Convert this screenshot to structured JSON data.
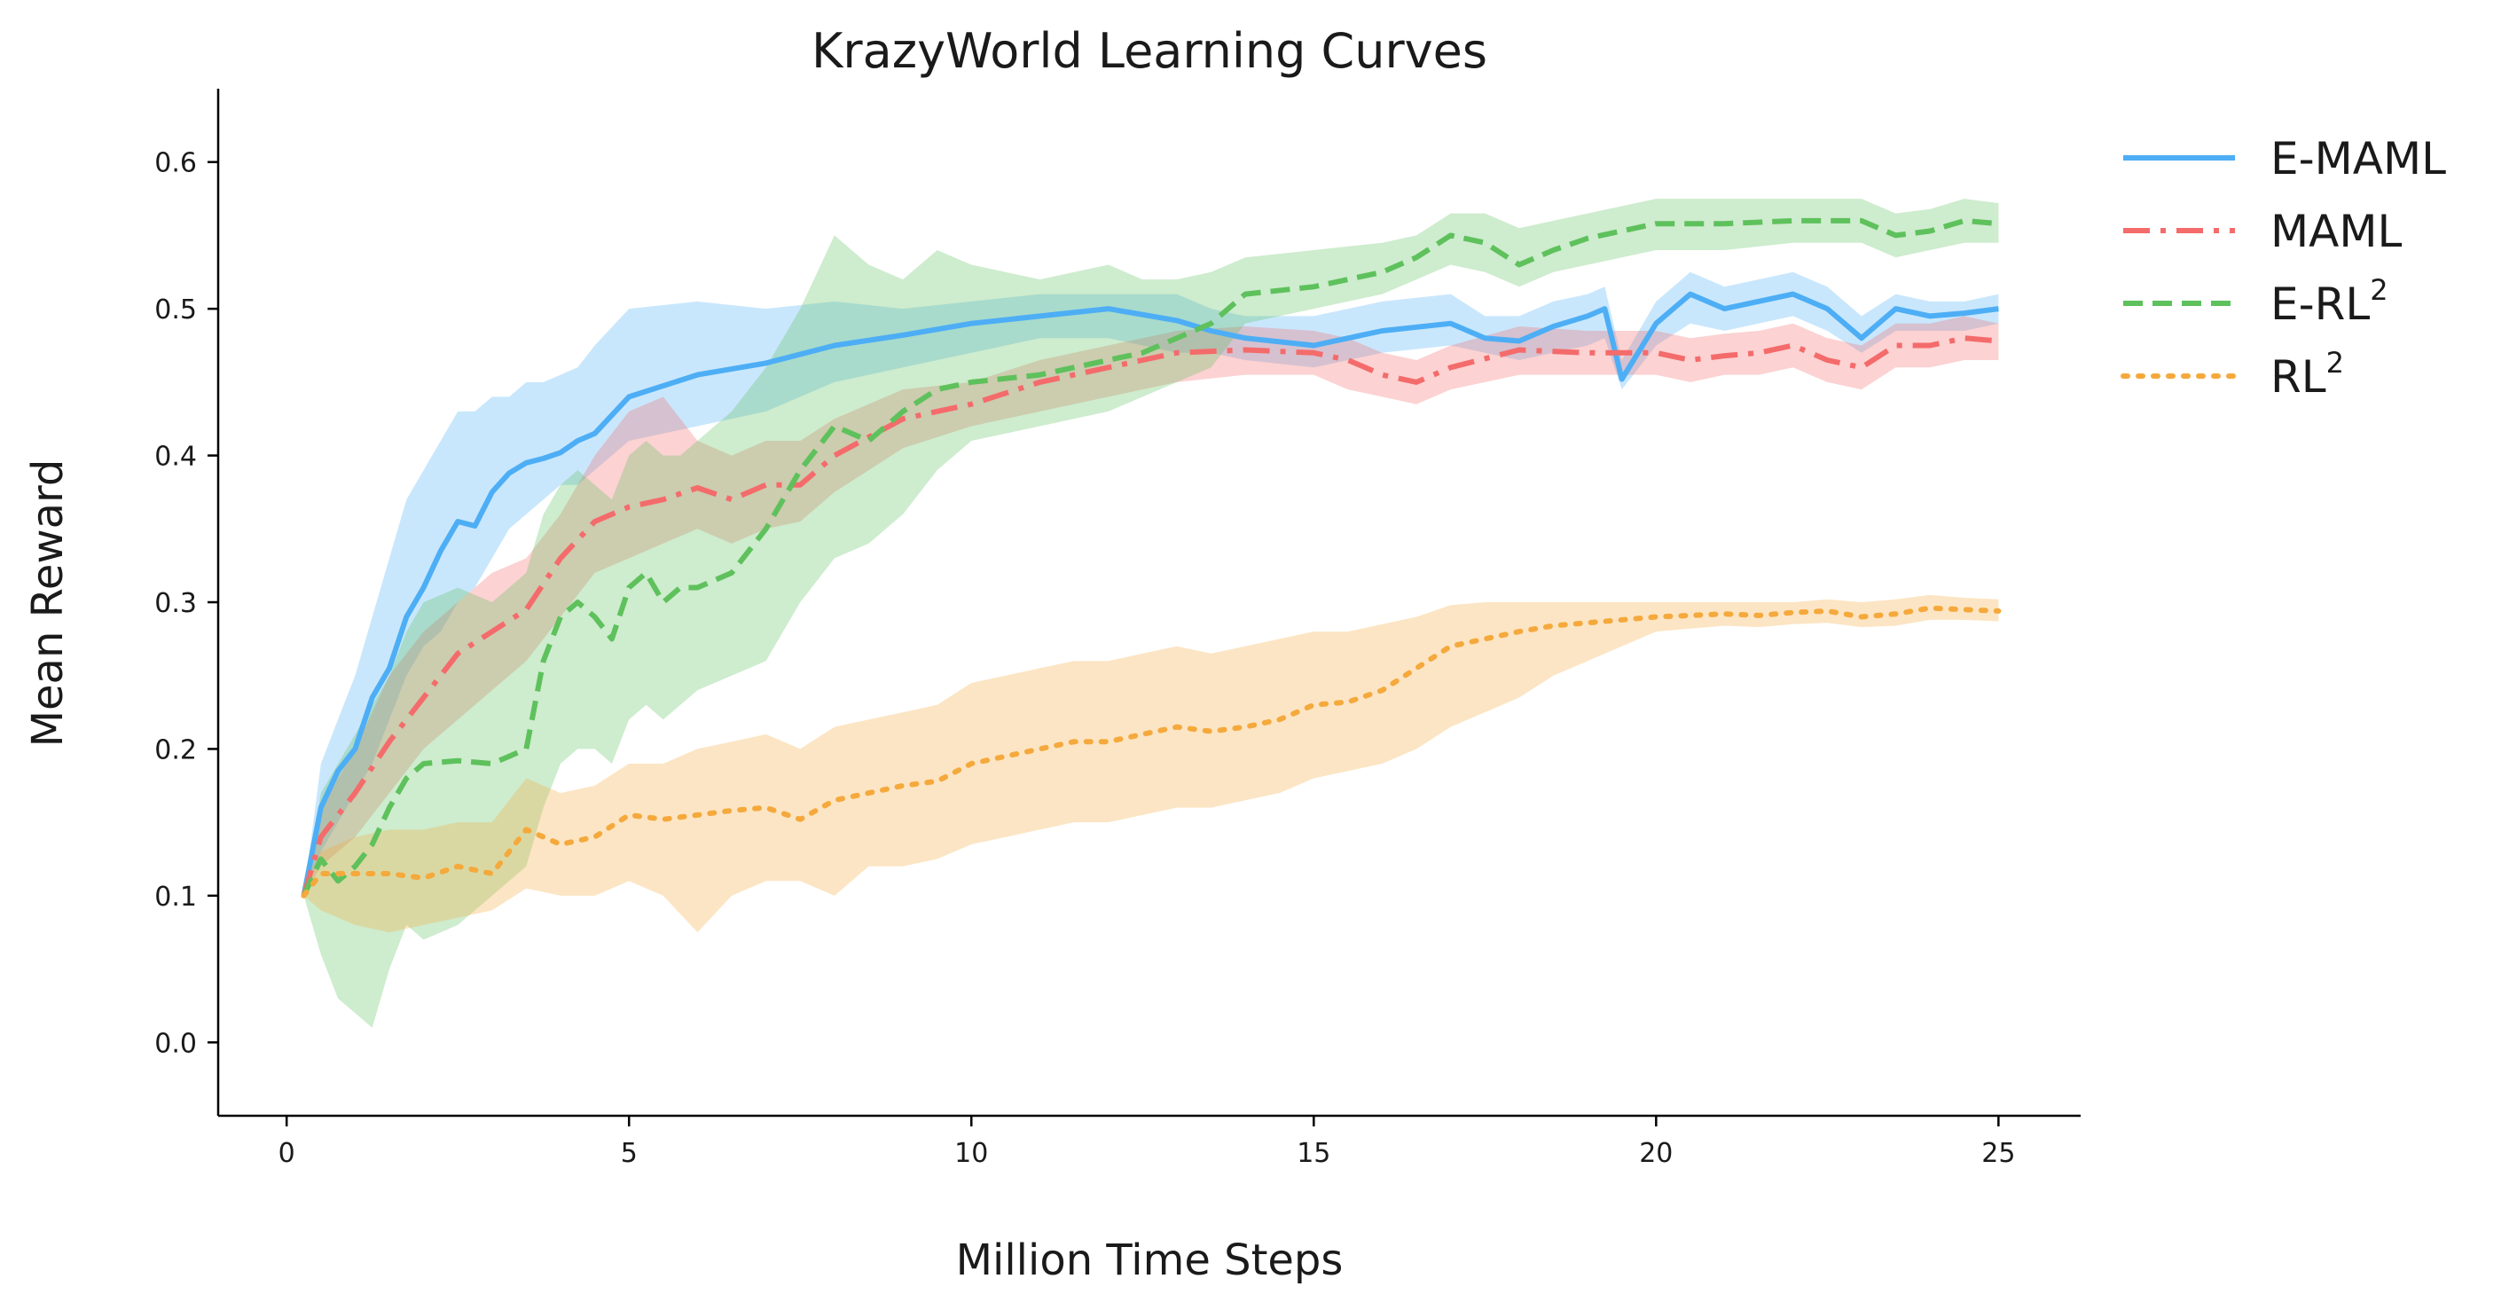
{
  "chart_data": {
    "type": "line",
    "title": "KrazyWorld Learning Curves",
    "xlabel": "Million Time Steps",
    "ylabel": "Mean Reward",
    "xlim": [
      -1,
      26.2
    ],
    "ylim": [
      -0.05,
      0.65
    ],
    "xticks": [
      0,
      5,
      10,
      15,
      20,
      25
    ],
    "xtick_labels": [
      "0",
      "5",
      "10",
      "15",
      "20",
      "25"
    ],
    "yticks": [
      0.0,
      0.1,
      0.2,
      0.3,
      0.4,
      0.5,
      0.6
    ],
    "ytick_labels": [
      "0.0",
      "0.1",
      "0.2",
      "0.3",
      "0.4",
      "0.5",
      "0.6"
    ],
    "grid": false,
    "legend_position": "outside-top-right",
    "series": [
      {
        "name": "E-MAML",
        "label_base": "E-MAML",
        "label_sup": "",
        "color": "#4daef5",
        "dash": "solid",
        "x": [
          0.25,
          0.5,
          0.75,
          1.0,
          1.25,
          1.5,
          1.75,
          2.0,
          2.25,
          2.5,
          2.75,
          3.0,
          3.25,
          3.5,
          3.75,
          4.0,
          4.25,
          4.5,
          5.0,
          6.0,
          7.0,
          8.0,
          9.0,
          10.0,
          11.0,
          12.0,
          13.0,
          13.5,
          14.0,
          15.0,
          16.0,
          17.0,
          17.5,
          18.0,
          18.5,
          19.0,
          19.25,
          19.5,
          20.0,
          20.5,
          21.0,
          22.0,
          22.5,
          23.0,
          23.5,
          24.0,
          24.5,
          25.0
        ],
        "y": [
          0.1,
          0.16,
          0.185,
          0.2,
          0.235,
          0.255,
          0.29,
          0.31,
          0.335,
          0.355,
          0.352,
          0.375,
          0.388,
          0.395,
          0.398,
          0.402,
          0.41,
          0.415,
          0.44,
          0.455,
          0.463,
          0.475,
          0.482,
          0.49,
          0.495,
          0.5,
          0.492,
          0.485,
          0.48,
          0.475,
          0.485,
          0.49,
          0.48,
          0.478,
          0.488,
          0.495,
          0.5,
          0.452,
          0.49,
          0.51,
          0.5,
          0.51,
          0.5,
          0.48,
          0.5,
          0.495,
          0.497,
          0.5
        ],
        "band_low": [
          0.1,
          0.13,
          0.15,
          0.17,
          0.19,
          0.22,
          0.25,
          0.27,
          0.28,
          0.3,
          0.31,
          0.33,
          0.35,
          0.36,
          0.37,
          0.38,
          0.38,
          0.39,
          0.41,
          0.42,
          0.43,
          0.45,
          0.46,
          0.47,
          0.48,
          0.48,
          0.47,
          0.47,
          0.465,
          0.46,
          0.47,
          0.475,
          0.47,
          0.465,
          0.47,
          0.475,
          0.48,
          0.445,
          0.475,
          0.49,
          0.485,
          0.495,
          0.485,
          0.47,
          0.485,
          0.485,
          0.485,
          0.49
        ],
        "band_high": [
          0.1,
          0.19,
          0.22,
          0.25,
          0.29,
          0.33,
          0.37,
          0.39,
          0.41,
          0.43,
          0.43,
          0.44,
          0.44,
          0.45,
          0.45,
          0.455,
          0.46,
          0.475,
          0.5,
          0.505,
          0.5,
          0.505,
          0.5,
          0.505,
          0.51,
          0.51,
          0.51,
          0.5,
          0.495,
          0.495,
          0.505,
          0.51,
          0.495,
          0.495,
          0.505,
          0.51,
          0.515,
          0.465,
          0.505,
          0.525,
          0.515,
          0.525,
          0.515,
          0.495,
          0.51,
          0.505,
          0.505,
          0.51
        ]
      },
      {
        "name": "MAML",
        "label_base": "MAML",
        "label_sup": "",
        "color": "#f46b6b",
        "dash": "dashdot",
        "x": [
          0.25,
          0.5,
          0.75,
          1.0,
          1.5,
          2.0,
          2.5,
          3.0,
          3.5,
          4.0,
          4.5,
          5.0,
          5.5,
          6.0,
          6.5,
          7.0,
          7.5,
          8.0,
          9.0,
          10.0,
          11.0,
          12.0,
          12.5,
          13.0,
          14.0,
          15.0,
          15.5,
          16.0,
          16.5,
          17.0,
          18.0,
          19.0,
          20.0,
          20.5,
          21.0,
          21.5,
          22.0,
          22.5,
          23.0,
          23.5,
          24.0,
          24.5,
          25.0
        ],
        "y": [
          0.1,
          0.14,
          0.155,
          0.17,
          0.205,
          0.235,
          0.265,
          0.28,
          0.295,
          0.33,
          0.355,
          0.365,
          0.37,
          0.378,
          0.37,
          0.38,
          0.38,
          0.4,
          0.425,
          0.435,
          0.45,
          0.46,
          0.465,
          0.47,
          0.472,
          0.47,
          0.465,
          0.455,
          0.45,
          0.46,
          0.472,
          0.47,
          0.47,
          0.465,
          0.468,
          0.47,
          0.475,
          0.465,
          0.46,
          0.475,
          0.475,
          0.48,
          0.478
        ],
        "band_low": [
          0.1,
          0.12,
          0.13,
          0.14,
          0.17,
          0.2,
          0.22,
          0.24,
          0.26,
          0.29,
          0.32,
          0.33,
          0.34,
          0.35,
          0.34,
          0.35,
          0.355,
          0.375,
          0.405,
          0.42,
          0.43,
          0.44,
          0.445,
          0.45,
          0.455,
          0.455,
          0.445,
          0.44,
          0.435,
          0.445,
          0.455,
          0.455,
          0.455,
          0.45,
          0.455,
          0.455,
          0.46,
          0.45,
          0.445,
          0.46,
          0.46,
          0.465,
          0.465
        ],
        "band_high": [
          0.1,
          0.16,
          0.18,
          0.2,
          0.25,
          0.28,
          0.3,
          0.32,
          0.33,
          0.36,
          0.4,
          0.43,
          0.44,
          0.41,
          0.4,
          0.41,
          0.41,
          0.425,
          0.445,
          0.45,
          0.465,
          0.475,
          0.48,
          0.485,
          0.488,
          0.485,
          0.48,
          0.47,
          0.465,
          0.475,
          0.488,
          0.485,
          0.485,
          0.48,
          0.483,
          0.485,
          0.49,
          0.48,
          0.475,
          0.49,
          0.49,
          0.495,
          0.49
        ]
      },
      {
        "name": "E-RL²",
        "label_base": "E-RL",
        "label_sup": "2",
        "color": "#5ec15c",
        "dash": "dashed",
        "x": [
          0.25,
          0.5,
          0.75,
          1.0,
          1.25,
          1.5,
          1.75,
          2.0,
          2.5,
          3.0,
          3.25,
          3.5,
          3.75,
          4.0,
          4.25,
          4.5,
          4.75,
          5.0,
          5.25,
          5.5,
          5.75,
          6.0,
          6.5,
          7.0,
          7.5,
          8.0,
          8.5,
          9.0,
          9.5,
          10.0,
          11.0,
          12.0,
          12.5,
          13.0,
          13.5,
          14.0,
          15.0,
          16.0,
          16.5,
          17.0,
          17.5,
          18.0,
          18.5,
          19.0,
          20.0,
          21.0,
          22.0,
          23.0,
          23.5,
          24.0,
          24.5,
          25.0
        ],
        "y": [
          0.1,
          0.125,
          0.11,
          0.12,
          0.135,
          0.16,
          0.18,
          0.19,
          0.192,
          0.19,
          0.195,
          0.2,
          0.26,
          0.29,
          0.3,
          0.29,
          0.275,
          0.31,
          0.32,
          0.3,
          0.31,
          0.31,
          0.32,
          0.35,
          0.39,
          0.42,
          0.41,
          0.43,
          0.445,
          0.45,
          0.455,
          0.465,
          0.47,
          0.48,
          0.49,
          0.51,
          0.515,
          0.525,
          0.535,
          0.55,
          0.545,
          0.53,
          0.54,
          0.548,
          0.558,
          0.558,
          0.56,
          0.56,
          0.55,
          0.553,
          0.56,
          0.558
        ],
        "band_low": [
          0.1,
          0.06,
          0.03,
          0.02,
          0.01,
          0.05,
          0.08,
          0.07,
          0.08,
          0.1,
          0.11,
          0.12,
          0.16,
          0.19,
          0.2,
          0.2,
          0.19,
          0.22,
          0.23,
          0.22,
          0.23,
          0.24,
          0.25,
          0.26,
          0.3,
          0.33,
          0.34,
          0.36,
          0.39,
          0.41,
          0.42,
          0.43,
          0.44,
          0.45,
          0.46,
          0.49,
          0.5,
          0.51,
          0.52,
          0.53,
          0.525,
          0.515,
          0.525,
          0.53,
          0.54,
          0.54,
          0.545,
          0.545,
          0.535,
          0.54,
          0.545,
          0.545
        ],
        "band_high": [
          0.1,
          0.17,
          0.19,
          0.21,
          0.23,
          0.25,
          0.28,
          0.3,
          0.31,
          0.3,
          0.31,
          0.32,
          0.36,
          0.38,
          0.39,
          0.38,
          0.37,
          0.4,
          0.41,
          0.4,
          0.4,
          0.41,
          0.43,
          0.46,
          0.5,
          0.55,
          0.53,
          0.52,
          0.54,
          0.53,
          0.52,
          0.53,
          0.52,
          0.52,
          0.525,
          0.535,
          0.54,
          0.545,
          0.55,
          0.565,
          0.565,
          0.555,
          0.56,
          0.565,
          0.575,
          0.575,
          0.575,
          0.575,
          0.565,
          0.568,
          0.575,
          0.572
        ]
      },
      {
        "name": "RL²",
        "label_base": "RL",
        "label_sup": "2",
        "color": "#f5a93c",
        "dash": "dotted",
        "x": [
          0.25,
          0.5,
          1.0,
          1.5,
          2.0,
          2.5,
          3.0,
          3.5,
          4.0,
          4.5,
          5.0,
          5.5,
          6.0,
          6.5,
          7.0,
          7.5,
          8.0,
          8.5,
          9.0,
          9.5,
          10.0,
          10.5,
          11.0,
          11.5,
          12.0,
          12.5,
          13.0,
          13.5,
          14.0,
          14.5,
          15.0,
          15.5,
          16.0,
          16.5,
          17.0,
          17.5,
          18.0,
          18.5,
          19.0,
          19.5,
          20.0,
          20.5,
          21.0,
          21.5,
          22.0,
          22.5,
          23.0,
          23.5,
          24.0,
          24.5,
          25.0
        ],
        "y": [
          0.1,
          0.115,
          0.115,
          0.115,
          0.112,
          0.12,
          0.115,
          0.145,
          0.135,
          0.14,
          0.155,
          0.152,
          0.155,
          0.158,
          0.16,
          0.152,
          0.165,
          0.17,
          0.175,
          0.178,
          0.19,
          0.195,
          0.2,
          0.205,
          0.205,
          0.21,
          0.215,
          0.212,
          0.215,
          0.22,
          0.23,
          0.232,
          0.24,
          0.255,
          0.27,
          0.275,
          0.28,
          0.284,
          0.286,
          0.288,
          0.29,
          0.291,
          0.292,
          0.291,
          0.293,
          0.294,
          0.29,
          0.292,
          0.296,
          0.295,
          0.294
        ],
        "band_low": [
          0.1,
          0.09,
          0.08,
          0.075,
          0.08,
          0.085,
          0.09,
          0.105,
          0.1,
          0.1,
          0.11,
          0.1,
          0.075,
          0.1,
          0.11,
          0.11,
          0.1,
          0.12,
          0.12,
          0.125,
          0.135,
          0.14,
          0.145,
          0.15,
          0.15,
          0.155,
          0.16,
          0.16,
          0.165,
          0.17,
          0.18,
          0.185,
          0.19,
          0.2,
          0.215,
          0.225,
          0.235,
          0.25,
          0.26,
          0.27,
          0.28,
          0.282,
          0.284,
          0.283,
          0.285,
          0.286,
          0.283,
          0.284,
          0.288,
          0.288,
          0.287
        ],
        "band_high": [
          0.1,
          0.13,
          0.14,
          0.145,
          0.145,
          0.15,
          0.15,
          0.18,
          0.17,
          0.175,
          0.19,
          0.19,
          0.2,
          0.205,
          0.21,
          0.2,
          0.215,
          0.22,
          0.225,
          0.23,
          0.245,
          0.25,
          0.255,
          0.26,
          0.26,
          0.265,
          0.27,
          0.265,
          0.27,
          0.275,
          0.28,
          0.28,
          0.285,
          0.29,
          0.298,
          0.3,
          0.3,
          0.3,
          0.3,
          0.3,
          0.3,
          0.3,
          0.3,
          0.3,
          0.3,
          0.302,
          0.3,
          0.302,
          0.305,
          0.303,
          0.302
        ]
      }
    ]
  }
}
